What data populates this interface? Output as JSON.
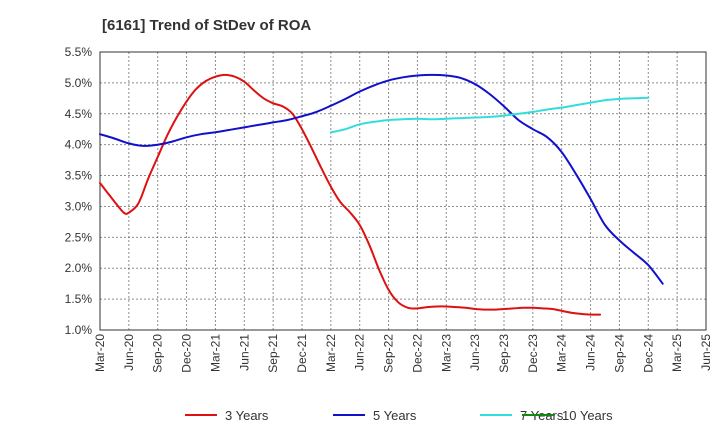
{
  "chart_data": {
    "type": "line",
    "title": "[6161]  Trend of StDev of ROA",
    "xlabel": "",
    "ylabel": "",
    "categories": [
      "Mar-20",
      "Jun-20",
      "Sep-20",
      "Dec-20",
      "Mar-21",
      "Jun-21",
      "Sep-21",
      "Dec-21",
      "Mar-22",
      "Jun-22",
      "Sep-22",
      "Dec-22",
      "Mar-23",
      "Jun-23",
      "Sep-23",
      "Dec-23",
      "Mar-24",
      "Jun-24",
      "Sep-24",
      "Dec-24",
      "Mar-25",
      "Jun-25"
    ],
    "yticks": [
      "5.5%",
      "5.0%",
      "4.5%",
      "4.0%",
      "3.5%",
      "3.0%",
      "2.5%",
      "2.0%",
      "1.5%",
      "1.0%"
    ],
    "ylim": [
      1.0,
      5.5
    ],
    "grid": true,
    "legend_position": "bottom",
    "series": [
      {
        "name": "3 Years",
        "color": "#dd1111",
        "points": [
          [
            0,
            3.38
          ],
          [
            0.33,
            3.18
          ],
          [
            0.67,
            2.98
          ],
          [
            0.85,
            2.89
          ],
          [
            1.0,
            2.9
          ],
          [
            1.33,
            3.05
          ],
          [
            1.67,
            3.45
          ],
          [
            2.0,
            3.8
          ],
          [
            2.33,
            4.15
          ],
          [
            2.67,
            4.45
          ],
          [
            3.0,
            4.7
          ],
          [
            3.33,
            4.9
          ],
          [
            3.67,
            5.03
          ],
          [
            4.0,
            5.1
          ],
          [
            4.33,
            5.13
          ],
          [
            4.67,
            5.1
          ],
          [
            5.0,
            5.02
          ],
          [
            5.33,
            4.88
          ],
          [
            5.67,
            4.75
          ],
          [
            6.0,
            4.67
          ],
          [
            6.33,
            4.62
          ],
          [
            6.67,
            4.5
          ],
          [
            7.0,
            4.25
          ],
          [
            7.33,
            3.95
          ],
          [
            7.67,
            3.62
          ],
          [
            8.0,
            3.32
          ],
          [
            8.33,
            3.07
          ],
          [
            8.67,
            2.9
          ],
          [
            9.0,
            2.7
          ],
          [
            9.33,
            2.38
          ],
          [
            9.67,
            1.98
          ],
          [
            10.0,
            1.65
          ],
          [
            10.33,
            1.45
          ],
          [
            10.67,
            1.36
          ],
          [
            11.0,
            1.35
          ],
          [
            11.33,
            1.37
          ],
          [
            11.67,
            1.38
          ],
          [
            12.0,
            1.38
          ],
          [
            12.33,
            1.37
          ],
          [
            12.67,
            1.36
          ],
          [
            13.0,
            1.34
          ],
          [
            13.33,
            1.33
          ],
          [
            13.67,
            1.33
          ],
          [
            14.0,
            1.34
          ],
          [
            14.33,
            1.35
          ],
          [
            14.67,
            1.36
          ],
          [
            15.0,
            1.36
          ],
          [
            15.33,
            1.35
          ],
          [
            15.67,
            1.34
          ],
          [
            16.0,
            1.31
          ],
          [
            16.33,
            1.28
          ],
          [
            16.67,
            1.26
          ],
          [
            17.0,
            1.25
          ],
          [
            17.33,
            1.25
          ]
        ]
      },
      {
        "name": "5 Years",
        "color": "#1111cc",
        "points": [
          [
            0,
            4.17
          ],
          [
            0.5,
            4.1
          ],
          [
            1.0,
            4.02
          ],
          [
            1.5,
            3.98
          ],
          [
            2.0,
            4.0
          ],
          [
            2.5,
            4.05
          ],
          [
            3.0,
            4.12
          ],
          [
            3.5,
            4.17
          ],
          [
            4.0,
            4.2
          ],
          [
            4.5,
            4.24
          ],
          [
            5.0,
            4.28
          ],
          [
            5.5,
            4.32
          ],
          [
            6.0,
            4.36
          ],
          [
            6.5,
            4.4
          ],
          [
            7.0,
            4.46
          ],
          [
            7.5,
            4.53
          ],
          [
            8.0,
            4.63
          ],
          [
            8.5,
            4.74
          ],
          [
            9.0,
            4.86
          ],
          [
            9.5,
            4.96
          ],
          [
            10.0,
            5.04
          ],
          [
            10.5,
            5.09
          ],
          [
            11.0,
            5.12
          ],
          [
            11.5,
            5.13
          ],
          [
            12.0,
            5.12
          ],
          [
            12.5,
            5.08
          ],
          [
            13.0,
            4.98
          ],
          [
            13.5,
            4.82
          ],
          [
            14.0,
            4.62
          ],
          [
            14.5,
            4.4
          ],
          [
            15.0,
            4.25
          ],
          [
            15.5,
            4.12
          ],
          [
            16.0,
            3.88
          ],
          [
            16.5,
            3.52
          ],
          [
            17.0,
            3.12
          ],
          [
            17.5,
            2.7
          ],
          [
            18.0,
            2.45
          ],
          [
            18.5,
            2.25
          ],
          [
            19.0,
            2.05
          ],
          [
            19.5,
            1.75
          ]
        ]
      },
      {
        "name": "7 Years",
        "color": "#33dddd",
        "points": [
          [
            8.0,
            4.2
          ],
          [
            8.5,
            4.25
          ],
          [
            9.0,
            4.33
          ],
          [
            9.5,
            4.37
          ],
          [
            10.0,
            4.4
          ],
          [
            10.5,
            4.41
          ],
          [
            11.0,
            4.42
          ],
          [
            11.5,
            4.41
          ],
          [
            12.0,
            4.42
          ],
          [
            12.5,
            4.43
          ],
          [
            13.0,
            4.44
          ],
          [
            13.5,
            4.45
          ],
          [
            14.0,
            4.47
          ],
          [
            14.5,
            4.5
          ],
          [
            15.0,
            4.53
          ],
          [
            15.5,
            4.57
          ],
          [
            16.0,
            4.6
          ],
          [
            16.5,
            4.64
          ],
          [
            17.0,
            4.68
          ],
          [
            17.5,
            4.72
          ],
          [
            18.0,
            4.74
          ],
          [
            18.5,
            4.75
          ],
          [
            19.0,
            4.76
          ]
        ]
      },
      {
        "name": "10 Years",
        "color": "#118811",
        "points": []
      }
    ]
  }
}
